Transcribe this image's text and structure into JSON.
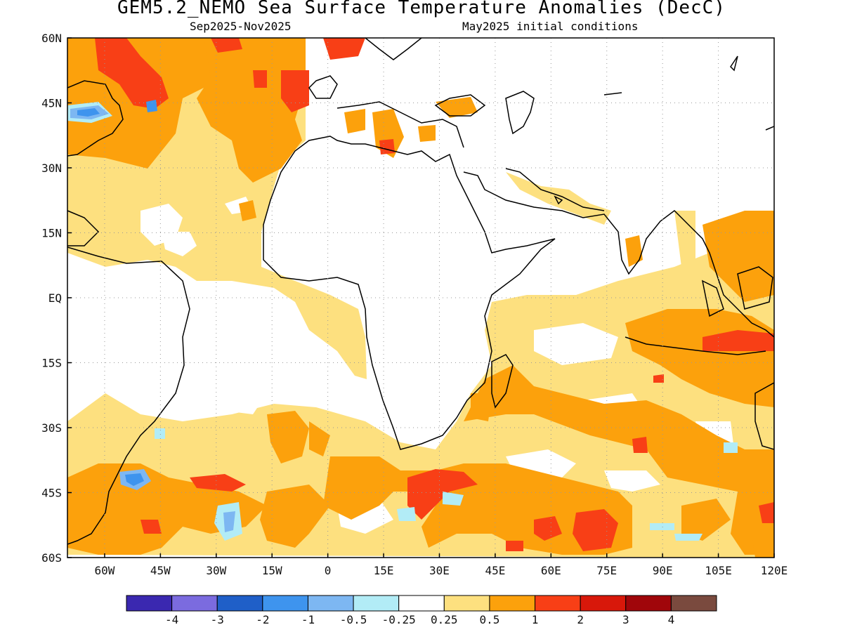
{
  "header": {
    "title": "GEM5.2_NEMO Sea Surface Temperature Anomalies (DecC)",
    "period": "Sep2025-Nov2025",
    "init": "May2025 initial conditions"
  },
  "map": {
    "projection": "equirectangular",
    "lon_range": [
      -70,
      120
    ],
    "lat_range": [
      -60,
      60
    ],
    "grid": "dotted",
    "lon_ticks": [
      {
        "value": -60,
        "label": "60W"
      },
      {
        "value": -45,
        "label": "45W"
      },
      {
        "value": -30,
        "label": "30W"
      },
      {
        "value": -15,
        "label": "15W"
      },
      {
        "value": 0,
        "label": "0"
      },
      {
        "value": 15,
        "label": "15E"
      },
      {
        "value": 30,
        "label": "30E"
      },
      {
        "value": 45,
        "label": "45E"
      },
      {
        "value": 60,
        "label": "60E"
      },
      {
        "value": 75,
        "label": "75E"
      },
      {
        "value": 90,
        "label": "90E"
      },
      {
        "value": 105,
        "label": "105E"
      },
      {
        "value": 120,
        "label": "120E"
      }
    ],
    "lat_ticks": [
      {
        "value": 60,
        "label": "60N"
      },
      {
        "value": 45,
        "label": "45N"
      },
      {
        "value": 30,
        "label": "30N"
      },
      {
        "value": 15,
        "label": "15N"
      },
      {
        "value": 0,
        "label": "EQ"
      },
      {
        "value": -15,
        "label": "15S"
      },
      {
        "value": -30,
        "label": "30S"
      },
      {
        "value": -45,
        "label": "45S"
      },
      {
        "value": -60,
        "label": "60S"
      }
    ]
  },
  "colorbar": {
    "colors": [
      "#3a28b0",
      "#7b6bdf",
      "#1f5fc8",
      "#3e94ee",
      "#7db7f2",
      "#b2ecf6",
      "#ffffff",
      "#fde07f",
      "#fca10c",
      "#f83f16",
      "#d8180a",
      "#a0060a",
      "#7a4a3e"
    ],
    "labels": [
      "-4",
      "-3",
      "-2",
      "-1",
      "-0.5",
      "-0.25",
      "0.25",
      "0.5",
      "1",
      "2",
      "3",
      "4"
    ]
  }
}
